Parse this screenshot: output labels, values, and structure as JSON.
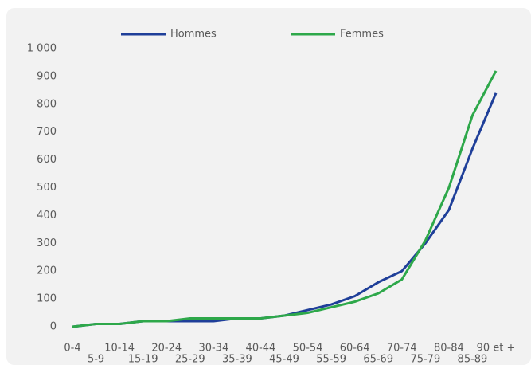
{
  "chart_data": {
    "type": "line",
    "categories": [
      "0-4",
      "5-9",
      "10-14",
      "15-19",
      "20-24",
      "25-29",
      "30-34",
      "35-39",
      "40-44",
      "45-49",
      "50-54",
      "55-59",
      "60-64",
      "65-69",
      "70-74",
      "75-79",
      "80-84",
      "85-89",
      "90 et +"
    ],
    "series": [
      {
        "name": "Hommes",
        "color": "#1f3f99",
        "values": [
          0,
          10,
          10,
          20,
          20,
          20,
          20,
          30,
          30,
          40,
          60,
          80,
          110,
          160,
          200,
          300,
          420,
          640,
          840
        ]
      },
      {
        "name": "Femmes",
        "color": "#2ea84a",
        "values": [
          0,
          10,
          10,
          20,
          20,
          30,
          30,
          30,
          30,
          40,
          50,
          70,
          90,
          120,
          170,
          310,
          500,
          760,
          920
        ]
      }
    ],
    "ylim": [
      0,
      1000
    ],
    "yticks": [
      0,
      100,
      200,
      300,
      400,
      500,
      600,
      700,
      800,
      900,
      {
        "value": 1000,
        "label": "1 000"
      }
    ],
    "grid": false,
    "legend": "top"
  }
}
